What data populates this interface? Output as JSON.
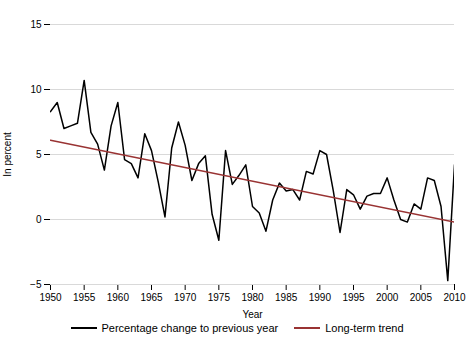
{
  "chart_data": {
    "type": "line",
    "xlabel": "Year",
    "ylabel": "In percent",
    "series": [
      {
        "name": "Percentage change to previous year",
        "color": "#000000",
        "x": [
          1950,
          1951,
          1952,
          1953,
          1954,
          1955,
          1956,
          1957,
          1958,
          1959,
          1960,
          1961,
          1962,
          1963,
          1964,
          1965,
          1966,
          1967,
          1968,
          1969,
          1970,
          1971,
          1972,
          1973,
          1974,
          1975,
          1976,
          1977,
          1978,
          1979,
          1980,
          1981,
          1982,
          1983,
          1984,
          1985,
          1986,
          1987,
          1988,
          1989,
          1990,
          1991,
          1992,
          1993,
          1994,
          1995,
          1996,
          1997,
          1998,
          1999,
          2000,
          2001,
          2002,
          2003,
          2004,
          2005,
          2006,
          2007,
          2008,
          2009,
          2010
        ],
        "values": [
          8.3,
          9.0,
          7.0,
          7.2,
          7.4,
          10.7,
          6.7,
          5.8,
          3.8,
          7.2,
          9.0,
          4.6,
          4.3,
          3.2,
          6.6,
          5.3,
          2.9,
          0.2,
          5.5,
          7.5,
          5.7,
          3.0,
          4.3,
          4.9,
          0.4,
          -1.6,
          5.3,
          2.7,
          3.4,
          4.2,
          1.0,
          0.5,
          -0.9,
          1.5,
          2.8,
          2.2,
          2.3,
          1.5,
          3.7,
          3.5,
          5.3,
          5.0,
          2.2,
          -1.0,
          2.3,
          1.9,
          0.8,
          1.8,
          2.0,
          2.0,
          3.2,
          1.5,
          0.0,
          -0.2,
          1.2,
          0.8,
          3.2,
          3.0,
          1.0,
          -4.7,
          4.2
        ]
      },
      {
        "name": "Long-term trend",
        "color": "#993333",
        "x": [
          1950,
          2010
        ],
        "values": [
          6.1,
          -0.2
        ]
      }
    ],
    "xlim": [
      1950,
      2010
    ],
    "xticks": [
      1950,
      1955,
      1960,
      1965,
      1970,
      1975,
      1980,
      1985,
      1990,
      1995,
      2000,
      2005,
      2010
    ],
    "ylim": [
      -5,
      15
    ],
    "yticks": [
      -5,
      0,
      5,
      10,
      15
    ],
    "grid": true,
    "legend": "bottom"
  }
}
